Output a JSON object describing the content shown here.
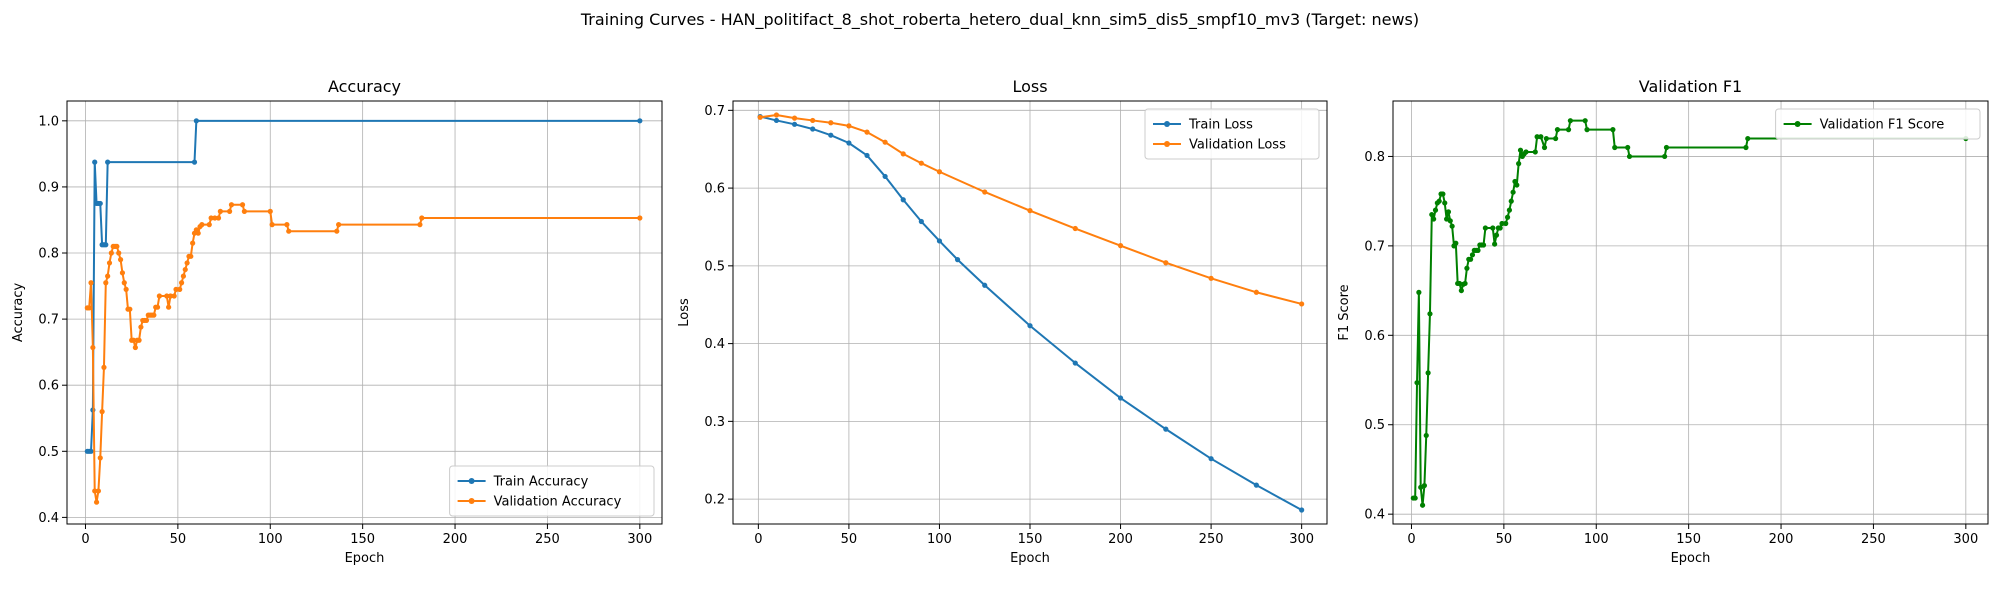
{
  "figure": {
    "suptitle": "Training Curves - HAN_politifact_8_shot_roberta_hetero_dual_knn_sim5_dis5_smpf10_mv3 (Target: news)"
  },
  "colors": {
    "blue": "#1f77b4",
    "orange": "#ff7f0e",
    "green": "#008000",
    "grid": "#b0b0b0"
  },
  "chart_data": [
    {
      "type": "line",
      "title": "Accuracy",
      "xlabel": "Epoch",
      "ylabel": "Accuracy",
      "xlim": [
        -10,
        312
      ],
      "ylim": [
        0.39,
        1.03
      ],
      "xticks": [
        0,
        50,
        100,
        150,
        200,
        250,
        300
      ],
      "yticks": [
        0.4,
        0.5,
        0.6,
        0.7,
        0.8,
        0.9,
        1.0
      ],
      "ytick_labels": [
        "0.4",
        "0.5",
        "0.6",
        "0.7",
        "0.8",
        "0.9",
        "1.0"
      ],
      "grid": true,
      "legend_position": "lower-right",
      "series": [
        {
          "name": "Train Accuracy",
          "color": "#1f77b4",
          "points": [
            [
              1,
              0.5
            ],
            [
              2,
              0.5
            ],
            [
              3,
              0.5
            ],
            [
              4,
              0.5625
            ],
            [
              5,
              0.9375
            ],
            [
              6,
              0.875
            ],
            [
              7,
              0.875
            ],
            [
              8,
              0.875
            ],
            [
              9,
              0.8125
            ],
            [
              10,
              0.8125
            ],
            [
              11,
              0.8125
            ],
            [
              12,
              0.9375
            ],
            [
              59,
              0.9375
            ],
            [
              60,
              1.0
            ],
            [
              300,
              1.0
            ]
          ]
        },
        {
          "name": "Validation Accuracy",
          "color": "#ff7f0e",
          "points": [
            [
              1,
              0.717
            ],
            [
              2,
              0.717
            ],
            [
              3,
              0.755
            ],
            [
              4,
              0.657
            ],
            [
              5,
              0.44
            ],
            [
              6,
              0.423
            ],
            [
              7,
              0.44
            ],
            [
              8,
              0.49
            ],
            [
              9,
              0.56
            ],
            [
              10,
              0.627
            ],
            [
              11,
              0.755
            ],
            [
              12,
              0.765
            ],
            [
              13,
              0.785
            ],
            [
              14,
              0.8
            ],
            [
              15,
              0.81
            ],
            [
              16,
              0.81
            ],
            [
              17,
              0.81
            ],
            [
              18,
              0.8
            ],
            [
              19,
              0.79
            ],
            [
              20,
              0.77
            ],
            [
              21,
              0.755
            ],
            [
              22,
              0.745
            ],
            [
              23,
              0.715
            ],
            [
              24,
              0.715
            ],
            [
              25,
              0.668
            ],
            [
              26,
              0.668
            ],
            [
              27,
              0.657
            ],
            [
              28,
              0.668
            ],
            [
              29,
              0.668
            ],
            [
              30,
              0.688
            ],
            [
              31,
              0.698
            ],
            [
              32,
              0.698
            ],
            [
              33,
              0.698
            ],
            [
              34,
              0.706
            ],
            [
              35,
              0.706
            ],
            [
              36,
              0.706
            ],
            [
              37,
              0.706
            ],
            [
              38,
              0.718
            ],
            [
              39,
              0.718
            ],
            [
              40,
              0.735
            ],
            [
              44,
              0.735
            ],
            [
              45,
              0.718
            ],
            [
              46,
              0.735
            ],
            [
              48,
              0.735
            ],
            [
              49,
              0.745
            ],
            [
              51,
              0.745
            ],
            [
              52,
              0.755
            ],
            [
              53,
              0.765
            ],
            [
              54,
              0.775
            ],
            [
              55,
              0.785
            ],
            [
              56,
              0.795
            ],
            [
              57,
              0.795
            ],
            [
              58,
              0.815
            ],
            [
              59,
              0.83
            ],
            [
              60,
              0.835
            ],
            [
              61,
              0.83
            ],
            [
              62,
              0.84
            ],
            [
              63,
              0.843
            ],
            [
              67,
              0.843
            ],
            [
              68,
              0.853
            ],
            [
              70,
              0.853
            ],
            [
              72,
              0.853
            ],
            [
              73,
              0.863
            ],
            [
              78,
              0.863
            ],
            [
              79,
              0.873
            ],
            [
              85,
              0.873
            ],
            [
              86,
              0.863
            ],
            [
              100,
              0.863
            ],
            [
              101,
              0.843
            ],
            [
              109,
              0.843
            ],
            [
              110,
              0.833
            ],
            [
              136,
              0.833
            ],
            [
              137,
              0.843
            ],
            [
              181,
              0.843
            ],
            [
              182,
              0.853
            ],
            [
              300,
              0.853
            ]
          ]
        }
      ]
    },
    {
      "type": "line",
      "title": "Loss",
      "xlabel": "Epoch",
      "ylabel": "Loss",
      "xlim": [
        -14,
        314
      ],
      "ylim": [
        0.168,
        0.712
      ],
      "xticks": [
        0,
        50,
        100,
        150,
        200,
        250,
        300
      ],
      "yticks": [
        0.2,
        0.3,
        0.4,
        0.5,
        0.6,
        0.7
      ],
      "ytick_labels": [
        "0.2",
        "0.3",
        "0.4",
        "0.5",
        "0.6",
        "0.7"
      ],
      "grid": true,
      "legend_position": "upper-right",
      "series": [
        {
          "name": "Train Loss",
          "color": "#1f77b4",
          "points": [
            [
              1,
              0.692
            ],
            [
              10,
              0.687
            ],
            [
              20,
              0.682
            ],
            [
              30,
              0.676
            ],
            [
              40,
              0.668
            ],
            [
              50,
              0.658
            ],
            [
              60,
              0.642
            ],
            [
              70,
              0.615
            ],
            [
              80,
              0.585
            ],
            [
              90,
              0.557
            ],
            [
              100,
              0.532
            ],
            [
              110,
              0.508
            ],
            [
              125,
              0.475
            ],
            [
              150,
              0.423
            ],
            [
              175,
              0.375
            ],
            [
              200,
              0.33
            ],
            [
              225,
              0.29
            ],
            [
              250,
              0.252
            ],
            [
              275,
              0.218
            ],
            [
              300,
              0.186
            ]
          ]
        },
        {
          "name": "Validation Loss",
          "color": "#ff7f0e",
          "points": [
            [
              1,
              0.691
            ],
            [
              10,
              0.694
            ],
            [
              20,
              0.69
            ],
            [
              30,
              0.687
            ],
            [
              40,
              0.684
            ],
            [
              50,
              0.68
            ],
            [
              60,
              0.672
            ],
            [
              70,
              0.659
            ],
            [
              80,
              0.644
            ],
            [
              90,
              0.632
            ],
            [
              100,
              0.621
            ],
            [
              125,
              0.595
            ],
            [
              150,
              0.571
            ],
            [
              175,
              0.548
            ],
            [
              200,
              0.526
            ],
            [
              225,
              0.504
            ],
            [
              250,
              0.484
            ],
            [
              275,
              0.466
            ],
            [
              300,
              0.451
            ]
          ]
        }
      ]
    },
    {
      "type": "line",
      "title": "Validation F1",
      "xlabel": "Epoch",
      "ylabel": "F1 Score",
      "xlim": [
        -10,
        312
      ],
      "ylim": [
        0.389,
        0.862
      ],
      "xticks": [
        0,
        50,
        100,
        150,
        200,
        250,
        300
      ],
      "yticks": [
        0.4,
        0.5,
        0.6,
        0.7,
        0.8
      ],
      "ytick_labels": [
        "0.4",
        "0.5",
        "0.6",
        "0.7",
        "0.8"
      ],
      "grid": true,
      "legend_position": "upper-right",
      "series": [
        {
          "name": "Validation F1 Score",
          "color": "#008000",
          "points": [
            [
              1,
              0.418
            ],
            [
              2,
              0.418
            ],
            [
              3,
              0.547
            ],
            [
              4,
              0.648
            ],
            [
              5,
              0.43
            ],
            [
              6,
              0.41
            ],
            [
              7,
              0.432
            ],
            [
              8,
              0.488
            ],
            [
              9,
              0.558
            ],
            [
              10,
              0.624
            ],
            [
              11,
              0.735
            ],
            [
              12,
              0.73
            ],
            [
              13,
              0.74
            ],
            [
              14,
              0.748
            ],
            [
              15,
              0.75
            ],
            [
              16,
              0.758
            ],
            [
              17,
              0.758
            ],
            [
              18,
              0.748
            ],
            [
              19,
              0.73
            ],
            [
              20,
              0.738
            ],
            [
              21,
              0.728
            ],
            [
              22,
              0.722
            ],
            [
              23,
              0.7
            ],
            [
              24,
              0.703
            ],
            [
              25,
              0.658
            ],
            [
              26,
              0.658
            ],
            [
              27,
              0.65
            ],
            [
              28,
              0.657
            ],
            [
              29,
              0.658
            ],
            [
              30,
              0.675
            ],
            [
              31,
              0.685
            ],
            [
              32,
              0.685
            ],
            [
              33,
              0.69
            ],
            [
              34,
              0.695
            ],
            [
              35,
              0.695
            ],
            [
              36,
              0.695
            ],
            [
              37,
              0.701
            ],
            [
              38,
              0.701
            ],
            [
              39,
              0.701
            ],
            [
              40,
              0.72
            ],
            [
              44,
              0.72
            ],
            [
              45,
              0.702
            ],
            [
              46,
              0.712
            ],
            [
              47,
              0.72
            ],
            [
              48,
              0.72
            ],
            [
              49,
              0.725
            ],
            [
              51,
              0.725
            ],
            [
              52,
              0.732
            ],
            [
              53,
              0.74
            ],
            [
              54,
              0.75
            ],
            [
              55,
              0.76
            ],
            [
              56,
              0.772
            ],
            [
              57,
              0.768
            ],
            [
              58,
              0.792
            ],
            [
              59,
              0.807
            ],
            [
              60,
              0.8
            ],
            [
              61,
              0.803
            ],
            [
              62,
              0.805
            ],
            [
              67,
              0.805
            ],
            [
              68,
              0.822
            ],
            [
              70,
              0.822
            ],
            [
              72,
              0.81
            ],
            [
              73,
              0.82
            ],
            [
              78,
              0.82
            ],
            [
              79,
              0.83
            ],
            [
              85,
              0.83
            ],
            [
              86,
              0.84
            ],
            [
              94,
              0.84
            ],
            [
              95,
              0.83
            ],
            [
              109,
              0.83
            ],
            [
              110,
              0.81
            ],
            [
              117,
              0.81
            ],
            [
              118,
              0.8
            ],
            [
              137,
              0.8
            ],
            [
              138,
              0.81
            ],
            [
              181,
              0.81
            ],
            [
              182,
              0.82
            ],
            [
              300,
              0.82
            ]
          ]
        }
      ]
    }
  ]
}
